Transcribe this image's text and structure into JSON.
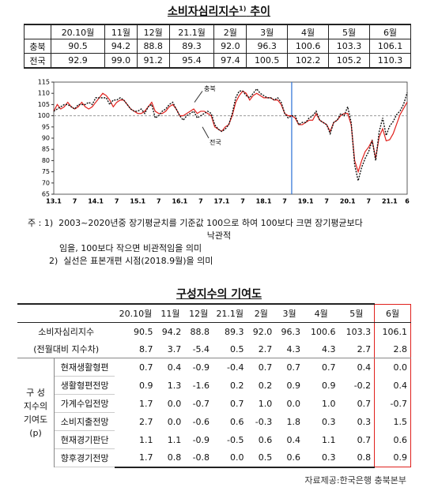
{
  "header": {
    "title_main": "소비자심리지수",
    "title_sup": "1)",
    "title_end": "추이"
  },
  "table1": {
    "columns": [
      "20.10월",
      "11월",
      "12월",
      "21.1월",
      "2월",
      "3월",
      "4월",
      "5월",
      "6월"
    ],
    "rows": [
      {
        "label": "충북",
        "cells": [
          "90.5",
          "94.2",
          "88.8",
          "89.3",
          "92.0",
          "96.3",
          "100.6",
          "103.3",
          "106.1"
        ]
      },
      {
        "label": "전국",
        "cells": [
          "92.9",
          "99.0",
          "91.2",
          "95.4",
          "97.4",
          "100.5",
          "102.2",
          "105.2",
          "110.3"
        ]
      }
    ]
  },
  "chart_data": {
    "type": "line",
    "categories": [
      "13.1",
      null,
      null,
      null,
      null,
      null,
      "7",
      null,
      null,
      null,
      null,
      null,
      "14.1",
      null,
      null,
      null,
      null,
      null,
      "7",
      null,
      null,
      null,
      null,
      null,
      "15.1",
      null,
      null,
      null,
      null,
      null,
      "7",
      null,
      null,
      null,
      null,
      null,
      "16.1",
      null,
      null,
      null,
      null,
      null,
      "7",
      null,
      null,
      null,
      null,
      null,
      "17.1",
      null,
      null,
      null,
      null,
      null,
      "7",
      null,
      null,
      null,
      null,
      null,
      "18.1",
      null,
      null,
      null,
      null,
      null,
      "7",
      null,
      null,
      null,
      null,
      null,
      "19.1",
      null,
      null,
      null,
      null,
      null,
      "7",
      null,
      null,
      null,
      null,
      null,
      "20.1",
      null,
      null,
      null,
      null,
      null,
      "7",
      null,
      null,
      null,
      null,
      null,
      "21.1",
      null,
      null,
      null,
      null,
      "6"
    ],
    "series": [
      {
        "name": "충북",
        "color": "#e0201c",
        "dash": false,
        "values": [
          102,
          105,
          103,
          104,
          106,
          104,
          103,
          104,
          106,
          104,
          103,
          104,
          106,
          108,
          110,
          109,
          107,
          104,
          106,
          107,
          107,
          105,
          103,
          102,
          101,
          101,
          102,
          104,
          106,
          102,
          101,
          101,
          102,
          104,
          105,
          103,
          100,
          100,
          101,
          102,
          103,
          101,
          102,
          102,
          101,
          100,
          95,
          94,
          93,
          95,
          96,
          100,
          106,
          109,
          111,
          110,
          107,
          109,
          110,
          109,
          108,
          108,
          108,
          107,
          107,
          105,
          101,
          100,
          100,
          99,
          96,
          96,
          97,
          98,
          98,
          101,
          98,
          97,
          96,
          93,
          97,
          98,
          100,
          101,
          101,
          96,
          80,
          75,
          80,
          84,
          86,
          89,
          81,
          90.5,
          94.2,
          88.8,
          89.3,
          92.0,
          96.3,
          100.6,
          103.3,
          106.1
        ]
      },
      {
        "name": "전국",
        "color": "#111111",
        "dash": true,
        "values": [
          102,
          103,
          104,
          105,
          105,
          104,
          103,
          105,
          105,
          105,
          106,
          105,
          108,
          108,
          108,
          108,
          105,
          107,
          107,
          108,
          107,
          105,
          103,
          102,
          102,
          103,
          101,
          104,
          105,
          99,
          100,
          102,
          103,
          105,
          106,
          103,
          100,
          98,
          100,
          101,
          102,
          99,
          100,
          101,
          102,
          101,
          96,
          94,
          93,
          94,
          96,
          101,
          108,
          111,
          111,
          109,
          108,
          110,
          112,
          110,
          109,
          108,
          108,
          107,
          108,
          106,
          101,
          99,
          100,
          100,
          96,
          97,
          97,
          99,
          100,
          102,
          98,
          97,
          96,
          92,
          97,
          98,
          101,
          100,
          104,
          97,
          78,
          71,
          77,
          81,
          84,
          89,
          80,
          92.9,
          99.0,
          91.2,
          95.4,
          97.4,
          100.5,
          102.2,
          105.2,
          110.3
        ]
      }
    ],
    "ylim": [
      65,
      115
    ],
    "yticks": [
      65,
      70,
      75,
      80,
      85,
      90,
      95,
      100,
      105,
      110,
      115
    ],
    "hline": 100
  },
  "notes": {
    "lead": "주 :",
    "n1_num": "1)",
    "n1_a": "2003~2020년중 장기평균치를 기준값 100으로 하여 100보다 크면 장기평균보다",
    "n1_b": "낙관적",
    "n1_c": "임을, 100보다 작으면 비관적임을 의미",
    "n2_num": "2)",
    "n2": "실선은 표본개편 시점(2018.9월)을 의미"
  },
  "section2": {
    "title": "구성지수의 기여도"
  },
  "table2": {
    "columns": [
      "20.10월",
      "11월",
      "12월",
      "21.1월",
      "2월",
      "3월",
      "4월",
      "5월",
      "6월"
    ],
    "top_rows": [
      {
        "label": "소비자심리지수",
        "cells": [
          "90.5",
          "94.2",
          "88.8",
          "89.3",
          "92.0",
          "96.3",
          "100.6",
          "103.3",
          "106.1"
        ]
      },
      {
        "label": "(전월대비 지수차)",
        "cells": [
          "8.7",
          "3.7",
          "-5.4",
          "0.5",
          "2.7",
          "4.3",
          "4.3",
          "2.7",
          "2.8"
        ]
      }
    ],
    "group_label": [
      "구 성",
      "지수의",
      "기여도",
      "(p)"
    ],
    "rows": [
      {
        "label": "현재생활형편",
        "cells": [
          "0.7",
          "0.4",
          "-0.9",
          "-0.4",
          "0.7",
          "0.7",
          "0.7",
          "0.4",
          "0.0"
        ]
      },
      {
        "label": "생활형편전망",
        "cells": [
          "0.9",
          "1.3",
          "-1.6",
          "0.2",
          "0.2",
          "0.9",
          "0.9",
          "-0.2",
          "0.4"
        ]
      },
      {
        "label": "가계수입전망",
        "cells": [
          "1.7",
          "0.0",
          "-0.7",
          "0.7",
          "1.0",
          "0.0",
          "1.0",
          "0.7",
          "-0.7"
        ]
      },
      {
        "label": "소비지출전망",
        "cells": [
          "2.7",
          "0.0",
          "-0.6",
          "0.6",
          "-0.3",
          "1.8",
          "0.3",
          "0.3",
          "1.5"
        ]
      },
      {
        "label": "현재경기판단",
        "cells": [
          "1.1",
          "1.1",
          "-0.9",
          "-0.5",
          "0.6",
          "0.4",
          "1.1",
          "0.7",
          "0.6"
        ]
      },
      {
        "label": "향후경기전망",
        "cells": [
          "1.7",
          "0.8",
          "-0.8",
          "0.0",
          "0.5",
          "0.6",
          "0.3",
          "0.8",
          "0.9"
        ]
      }
    ]
  },
  "footer": {
    "source": "자료제공:한국은행 충북본부"
  }
}
